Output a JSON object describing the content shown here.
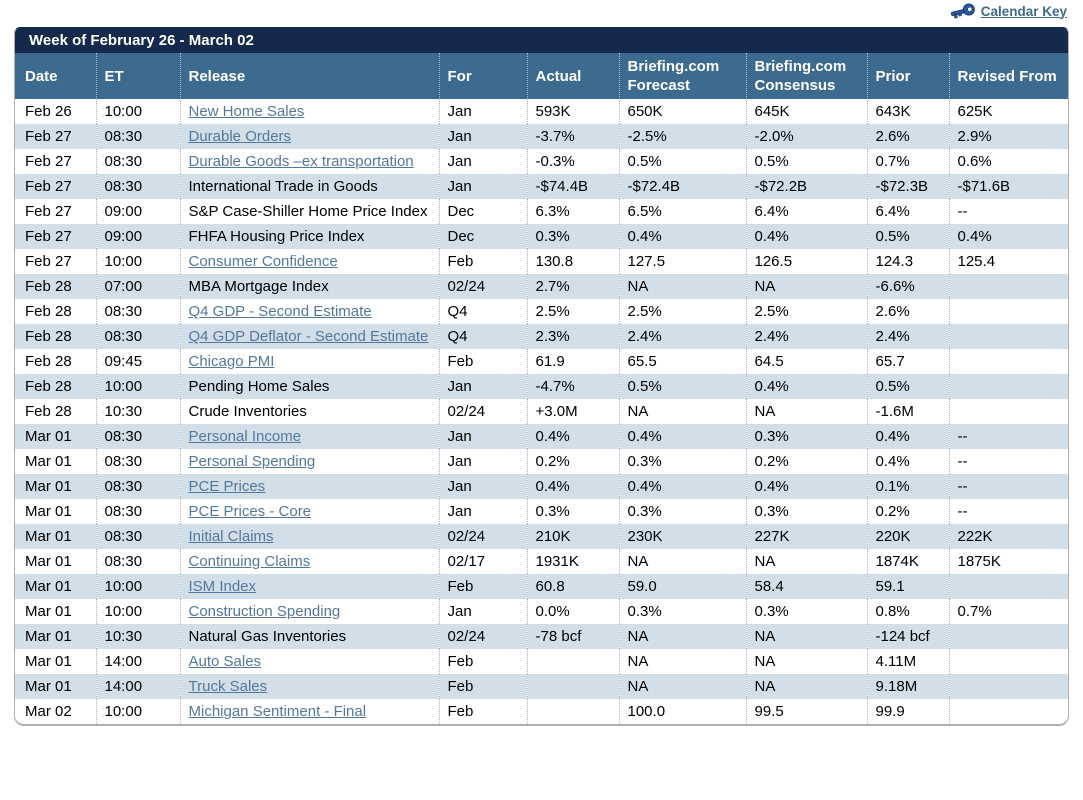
{
  "page": {
    "calendar_key_label": "Calendar Key"
  },
  "colors": {
    "title_bar": "#14294b",
    "header_row": "#3d6b90",
    "alt_row": "#d2dfe9",
    "release_link": "#54789b",
    "calendar_key_link": "#3f6a87",
    "key_icon_blue": "#2a5caa"
  },
  "table": {
    "title": "Week of February 26 - March 02",
    "columns": [
      "Date",
      "ET",
      "Release",
      "For",
      "Actual",
      "Briefing.com Forecast",
      "Briefing.com Consensus",
      "Prior",
      "Revised From"
    ],
    "rows": [
      {
        "date": "Feb 26",
        "et": "10:00",
        "release": "New Home Sales",
        "link": true,
        "for": "Jan",
        "actual": "593K",
        "forecast": "650K",
        "consensus": "645K",
        "prior": "643K",
        "revised": "625K"
      },
      {
        "date": "Feb 27",
        "et": "08:30",
        "release": "Durable Orders",
        "link": true,
        "for": "Jan",
        "actual": "-3.7%",
        "forecast": "-2.5%",
        "consensus": "-2.0%",
        "prior": "2.6%",
        "revised": "2.9%"
      },
      {
        "date": "Feb 27",
        "et": "08:30",
        "release": "Durable Goods –ex transportation",
        "link": true,
        "for": "Jan",
        "actual": "-0.3%",
        "forecast": "0.5%",
        "consensus": "0.5%",
        "prior": "0.7%",
        "revised": "0.6%"
      },
      {
        "date": "Feb 27",
        "et": "08:30",
        "release": "International Trade in Goods",
        "link": false,
        "for": "Jan",
        "actual": "-$74.4B",
        "forecast": "-$72.4B",
        "consensus": "-$72.2B",
        "prior": "-$72.3B",
        "revised": "-$71.6B"
      },
      {
        "date": "Feb 27",
        "et": "09:00",
        "release": "S&P Case-Shiller Home Price Index",
        "link": false,
        "for": "Dec",
        "actual": "6.3%",
        "forecast": "6.5%",
        "consensus": "6.4%",
        "prior": "6.4%",
        "revised": "--"
      },
      {
        "date": "Feb 27",
        "et": "09:00",
        "release": "FHFA Housing Price Index",
        "link": false,
        "for": "Dec",
        "actual": "0.3%",
        "forecast": "0.4%",
        "consensus": "0.4%",
        "prior": "0.5%",
        "revised": "0.4%"
      },
      {
        "date": "Feb 27",
        "et": "10:00",
        "release": "Consumer Confidence",
        "link": true,
        "for": "Feb",
        "actual": "130.8",
        "forecast": "127.5",
        "consensus": "126.5",
        "prior": "124.3",
        "revised": "125.4"
      },
      {
        "date": "Feb 28",
        "et": "07:00",
        "release": "MBA Mortgage Index",
        "link": false,
        "for": "02/24",
        "actual": "2.7%",
        "forecast": "NA",
        "consensus": "NA",
        "prior": "-6.6%",
        "revised": ""
      },
      {
        "date": "Feb 28",
        "et": "08:30",
        "release": "Q4 GDP - Second Estimate",
        "link": true,
        "for": "Q4",
        "actual": "2.5%",
        "forecast": "2.5%",
        "consensus": "2.5%",
        "prior": "2.6%",
        "revised": ""
      },
      {
        "date": "Feb 28",
        "et": "08:30",
        "release": "Q4 GDP Deflator - Second Estimate",
        "link": true,
        "for": "Q4",
        "actual": "2.3%",
        "forecast": "2.4%",
        "consensus": "2.4%",
        "prior": "2.4%",
        "revised": ""
      },
      {
        "date": "Feb 28",
        "et": "09:45",
        "release": "Chicago PMI",
        "link": true,
        "for": "Feb",
        "actual": "61.9",
        "forecast": "65.5",
        "consensus": "64.5",
        "prior": "65.7",
        "revised": ""
      },
      {
        "date": "Feb 28",
        "et": "10:00",
        "release": "Pending Home Sales",
        "link": false,
        "for": "Jan",
        "actual": "-4.7%",
        "forecast": "0.5%",
        "consensus": "0.4%",
        "prior": "0.5%",
        "revised": ""
      },
      {
        "date": "Feb 28",
        "et": "10:30",
        "release": "Crude Inventories",
        "link": false,
        "for": "02/24",
        "actual": "+3.0M",
        "forecast": "NA",
        "consensus": "NA",
        "prior": "-1.6M",
        "revised": ""
      },
      {
        "date": "Mar 01",
        "et": "08:30",
        "release": "Personal Income",
        "link": true,
        "for": "Jan",
        "actual": "0.4%",
        "forecast": "0.4%",
        "consensus": "0.3%",
        "prior": "0.4%",
        "revised": "--"
      },
      {
        "date": "Mar 01",
        "et": "08:30",
        "release": "Personal Spending",
        "link": true,
        "for": "Jan",
        "actual": "0.2%",
        "forecast": "0.3%",
        "consensus": "0.2%",
        "prior": "0.4%",
        "revised": "--"
      },
      {
        "date": "Mar 01",
        "et": "08:30",
        "release": "PCE Prices",
        "link": true,
        "for": "Jan",
        "actual": "0.4%",
        "forecast": "0.4%",
        "consensus": "0.4%",
        "prior": "0.1%",
        "revised": "--"
      },
      {
        "date": "Mar 01",
        "et": "08:30",
        "release": "PCE Prices - Core",
        "link": true,
        "for": "Jan",
        "actual": "0.3%",
        "forecast": "0.3%",
        "consensus": "0.3%",
        "prior": "0.2%",
        "revised": "--"
      },
      {
        "date": "Mar 01",
        "et": "08:30",
        "release": "Initial Claims",
        "link": true,
        "for": "02/24",
        "actual": "210K",
        "forecast": "230K",
        "consensus": "227K",
        "prior": "220K",
        "revised": "222K"
      },
      {
        "date": "Mar 01",
        "et": "08:30",
        "release": "Continuing Claims",
        "link": true,
        "for": "02/17",
        "actual": "1931K",
        "forecast": "NA",
        "consensus": "NA",
        "prior": "1874K",
        "revised": "1875K"
      },
      {
        "date": "Mar 01",
        "et": "10:00",
        "release": "ISM Index",
        "link": true,
        "for": "Feb",
        "actual": "60.8",
        "forecast": "59.0",
        "consensus": "58.4",
        "prior": "59.1",
        "revised": ""
      },
      {
        "date": "Mar 01",
        "et": "10:00",
        "release": "Construction Spending",
        "link": true,
        "for": "Jan",
        "actual": "0.0%",
        "forecast": "0.3%",
        "consensus": "0.3%",
        "prior": "0.8%",
        "revised": "0.7%"
      },
      {
        "date": "Mar 01",
        "et": "10:30",
        "release": "Natural Gas Inventories",
        "link": false,
        "for": "02/24",
        "actual": "-78 bcf",
        "forecast": "NA",
        "consensus": "NA",
        "prior": "-124 bcf",
        "revised": ""
      },
      {
        "date": "Mar 01",
        "et": "14:00",
        "release": "Auto Sales",
        "link": true,
        "for": "Feb",
        "actual": "",
        "forecast": "NA",
        "consensus": "NA",
        "prior": "4.11M",
        "revised": ""
      },
      {
        "date": "Mar 01",
        "et": "14:00",
        "release": "Truck Sales",
        "link": true,
        "for": "Feb",
        "actual": "",
        "forecast": "NA",
        "consensus": "NA",
        "prior": "9.18M",
        "revised": ""
      },
      {
        "date": "Mar 02",
        "et": "10:00",
        "release": "Michigan Sentiment - Final",
        "link": true,
        "for": "Feb",
        "actual": "",
        "forecast": "100.0",
        "consensus": "99.5",
        "prior": "99.9",
        "revised": ""
      }
    ]
  }
}
